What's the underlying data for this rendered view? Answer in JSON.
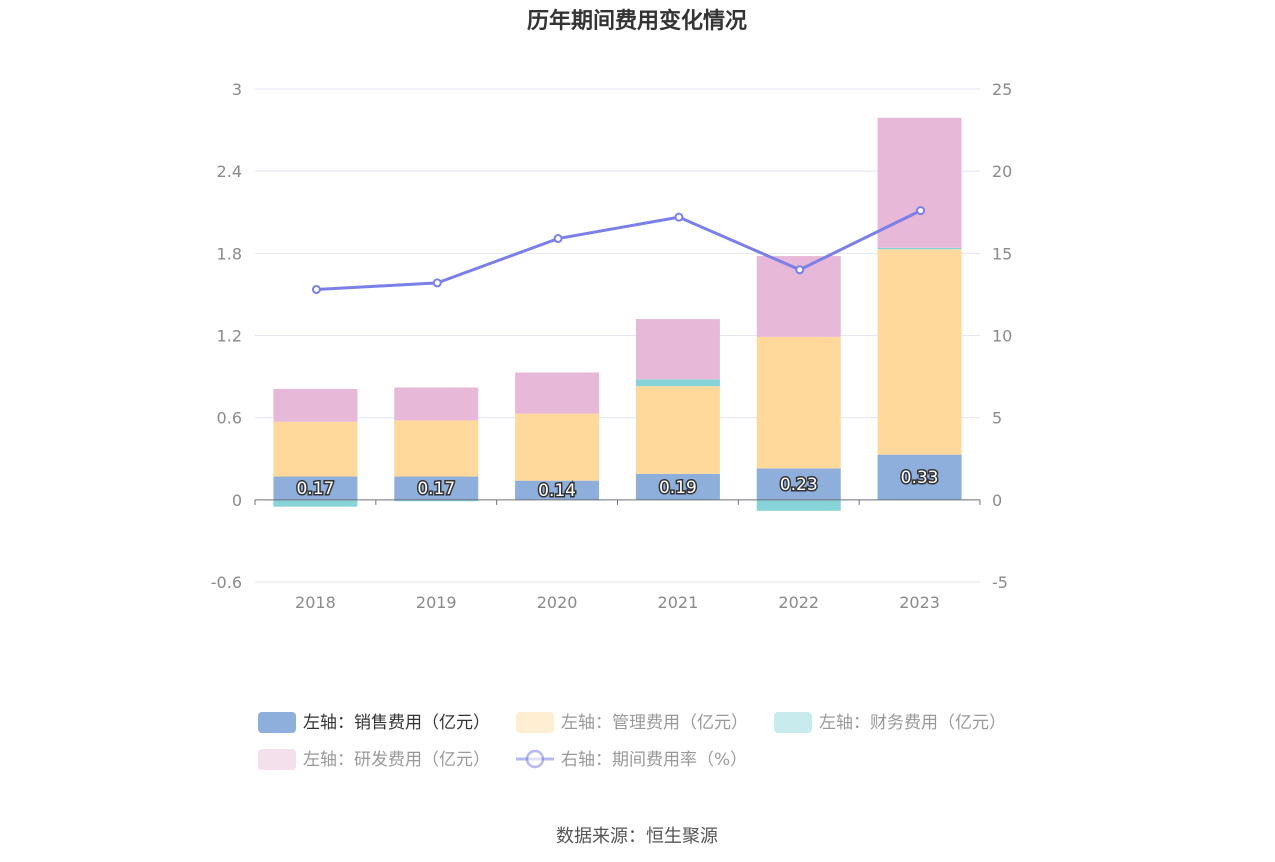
{
  "chart_data": {
    "type": "bar",
    "title": "历年期间费用变化情况",
    "categories": [
      "2018",
      "2019",
      "2020",
      "2021",
      "2022",
      "2023"
    ],
    "stacked": true,
    "y_left": {
      "ylim": [
        -0.6,
        3
      ],
      "ticks": [
        "-0.6",
        "0",
        "0.6",
        "1.2",
        "1.8",
        "2.4",
        "3"
      ],
      "values": [
        -0.6,
        0,
        0.6,
        1.2,
        1.8,
        2.4,
        3
      ]
    },
    "y_right": {
      "ylim": [
        -5,
        25
      ],
      "ticks": [
        "-5",
        "0",
        "5",
        "10",
        "15",
        "20",
        "25"
      ],
      "values": [
        -5,
        0,
        5,
        10,
        15,
        20,
        25
      ]
    },
    "grid": true,
    "legend_position": "bottom",
    "series": [
      {
        "name": "左轴：销售费用（亿元）",
        "axis": "left",
        "kind": "bar",
        "color": "#8eaedb",
        "values": [
          0.17,
          0.17,
          0.14,
          0.19,
          0.23,
          0.33
        ],
        "labels": [
          "0.17",
          "0.17",
          "0.14",
          "0.19",
          "0.23",
          "0.33"
        ]
      },
      {
        "name": "左轴：管理费用（亿元）",
        "axis": "left",
        "kind": "bar",
        "color": "#ffd99b",
        "values": [
          0.4,
          0.41,
          0.49,
          0.64,
          0.96,
          1.5
        ]
      },
      {
        "name": "左轴：财务费用（亿元）",
        "axis": "left",
        "kind": "bar",
        "color": "#86d4d8",
        "values": [
          -0.05,
          -0.01,
          0.0,
          0.05,
          -0.08,
          0.01
        ]
      },
      {
        "name": "左轴：研发费用（亿元）",
        "axis": "left",
        "kind": "bar",
        "color": "#e7b8d8",
        "values": [
          0.24,
          0.24,
          0.3,
          0.44,
          0.59,
          0.95
        ]
      },
      {
        "name": "右轴：期间费用率（%）",
        "axis": "right",
        "kind": "line",
        "color": "#7b7fe8",
        "values": [
          12.8,
          13.2,
          15.9,
          17.2,
          14.0,
          17.6
        ]
      }
    ]
  },
  "source": "数据来源：恒生聚源"
}
